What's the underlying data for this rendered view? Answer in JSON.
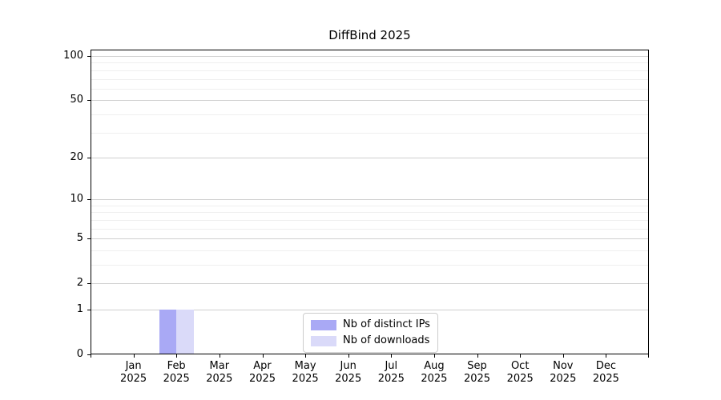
{
  "chart_data": {
    "type": "bar",
    "title": "DiffBind 2025",
    "categories": [
      "Jan 2025",
      "Feb 2025",
      "Mar 2025",
      "Apr 2025",
      "May 2025",
      "Jun 2025",
      "Jul 2025",
      "Aug 2025",
      "Sep 2025",
      "Oct 2025",
      "Nov 2025",
      "Dec 2025"
    ],
    "series": [
      {
        "name": "Nb of distinct IPs",
        "color": "#a9a9f5",
        "values": [
          0,
          1,
          0,
          0,
          0,
          0,
          0,
          0,
          0,
          0,
          0,
          0
        ]
      },
      {
        "name": "Nb of downloads",
        "color": "#dadaf9",
        "values": [
          0,
          1,
          0,
          0,
          0,
          0,
          0,
          0,
          0,
          0,
          0,
          0
        ]
      }
    ],
    "xlabel": "",
    "ylabel": "",
    "yscale": "log1p",
    "ylim": [
      0,
      100
    ],
    "yticks": [
      0,
      1,
      2,
      5,
      10,
      20,
      50,
      100
    ],
    "minor_gridlines": [
      3,
      4,
      6,
      7,
      8,
      9,
      30,
      40,
      60,
      70,
      80,
      90
    ],
    "grid": "horizontal",
    "legend_position": "bottom-center",
    "colors": {
      "major_grid": "#d0d0d0",
      "minor_grid": "#efefef",
      "axis": "#000000",
      "text": "#000000",
      "legend_border": "#cccccc",
      "background": "#ffffff"
    }
  }
}
